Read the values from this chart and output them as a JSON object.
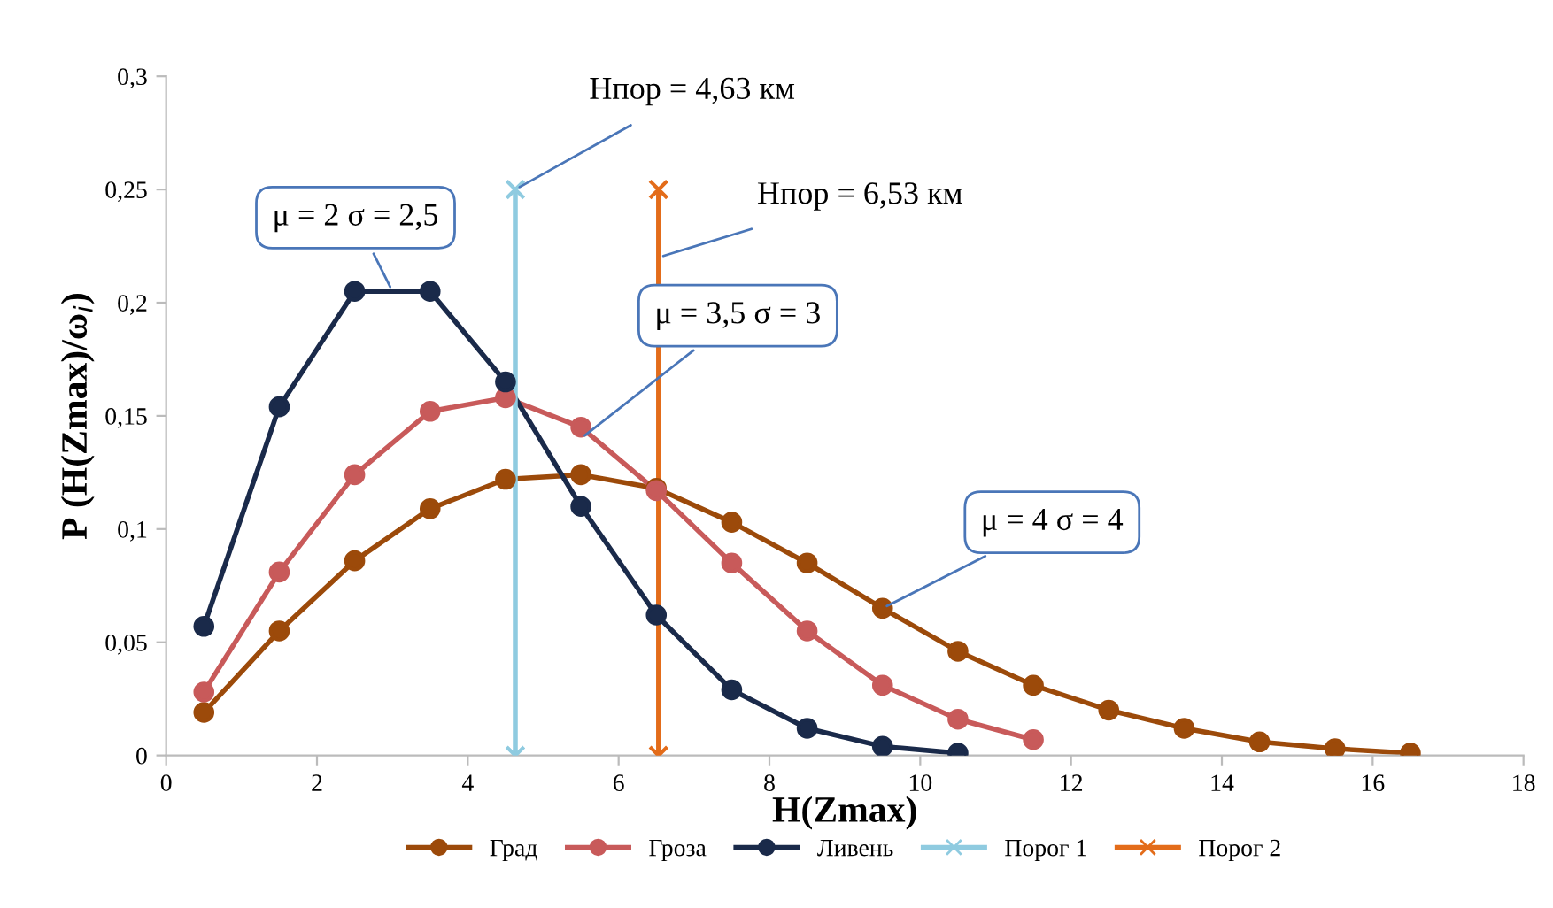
{
  "chart_data": {
    "type": "line",
    "xlabel": "H(Zmax)",
    "ylabel": "P (H(Zmax)/ω$_{i}$)",
    "x": [
      0.5,
      1.5,
      2.5,
      3.5,
      4.5,
      5.5,
      6.5,
      7.5,
      8.5,
      9.5,
      10.5,
      11.5,
      12.5,
      13.5,
      14.5,
      15.5,
      16.5
    ],
    "series": [
      {
        "name": "Град",
        "color": "#9c4a0a",
        "marker": "circle",
        "values": [
          0.019,
          0.055,
          0.086,
          0.109,
          0.122,
          0.124,
          0.118,
          0.103,
          0.085,
          0.065,
          0.046,
          0.031,
          0.02,
          0.012,
          0.006,
          0.003,
          0.001
        ]
      },
      {
        "name": "Гроза",
        "color": "#c85a5a",
        "marker": "circle",
        "x": [
          0.5,
          1.5,
          2.5,
          3.5,
          4.5,
          5.5,
          6.5,
          7.5,
          8.5,
          9.5,
          10.5,
          11.5
        ],
        "values": [
          0.028,
          0.081,
          0.124,
          0.152,
          0.158,
          0.145,
          0.117,
          0.085,
          0.055,
          0.031,
          0.016,
          0.007
        ]
      },
      {
        "name": "Ливень",
        "color": "#1a2a4a",
        "marker": "circle",
        "x": [
          0.5,
          1.5,
          2.5,
          3.5,
          4.5,
          5.5,
          6.5,
          7.5,
          8.5,
          9.5,
          10.5
        ],
        "values": [
          0.057,
          0.154,
          0.205,
          0.205,
          0.165,
          0.11,
          0.062,
          0.029,
          0.012,
          0.004,
          0.001
        ]
      },
      {
        "name": "Порог 1",
        "color": "#8fcbe0",
        "marker": "cross",
        "x": [
          4.63,
          4.63
        ],
        "values": [
          0,
          0.25
        ]
      },
      {
        "name": "Порог 2",
        "color": "#e36c1a",
        "marker": "cross",
        "x": [
          6.53,
          6.53
        ],
        "values": [
          0,
          0.25
        ]
      }
    ],
    "xlim": [
      0,
      18
    ],
    "xticks": [
      0,
      2,
      4,
      6,
      8,
      10,
      12,
      14,
      16,
      18
    ],
    "ylim": [
      0,
      0.3
    ],
    "yticks": [
      {
        "value": 0,
        "label": "0"
      },
      {
        "value": 0.05,
        "label": "0,05"
      },
      {
        "value": 0.1,
        "label": "0,1"
      },
      {
        "value": 0.15,
        "label": "0,15"
      },
      {
        "value": 0.2,
        "label": "0,2"
      },
      {
        "value": 0.25,
        "label": "0,25"
      },
      {
        "value": 0.3,
        "label": "0,3"
      }
    ],
    "grid": false,
    "legend": "bottom",
    "annotations": [
      {
        "text": "Нпор = 4,63 км",
        "x": 4.63,
        "y": 0.25
      },
      {
        "text": "Нпор = 6,53 км",
        "x": 6.53,
        "y": 0.22
      },
      {
        "text": "μ = 2 σ = 2,5",
        "x": 3,
        "y": 0.205
      },
      {
        "text": "μ = 3,5 σ = 3",
        "x": 5.5,
        "y": 0.14
      },
      {
        "text": "μ = 4 σ = 4",
        "x": 9.5,
        "y": 0.065
      }
    ]
  }
}
